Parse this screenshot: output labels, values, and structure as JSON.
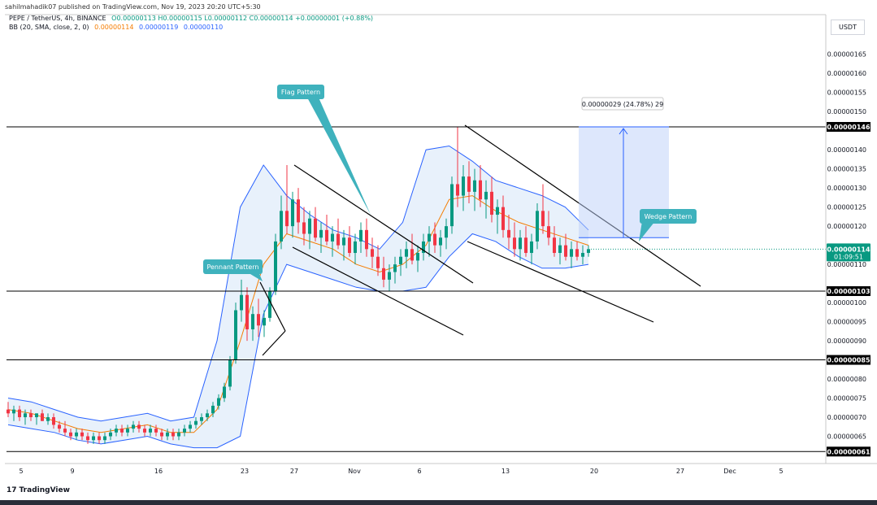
{
  "header": {
    "attribution": "sahilmahadik07 published on TradingView.com, Nov 19, 2023 20:20 UTC+5:30",
    "symbol": "PEPE / TetherUS, 4h, BINANCE",
    "ohlc": "O0.00000113  H0.00000115  L0.00000112  C0.00000114  +0.00000001 (+0.88%)",
    "bb_label": "BB (20, SMA, close, 2, 0)",
    "bb_basis": "0.00000114",
    "bb_upper": "0.00000119",
    "bb_lower": "0.00000110"
  },
  "currency": "USDT",
  "branding": "TradingView",
  "colors": {
    "up": "#089981",
    "down": "#f23645",
    "basis": "#f57c00",
    "band": "#2962ff",
    "band_fill": "#e8f1fb",
    "measure": "#2962ff",
    "callout": "#3fb2bd"
  },
  "price_axis": {
    "ticks": [
      "0.00000165",
      "0.00000160",
      "0.00000155",
      "0.00000150",
      "0.00000140",
      "0.00000135",
      "0.00000130",
      "0.00000125",
      "0.00000120",
      "0.00000110",
      "0.00000100",
      "0.00000095",
      "0.00000090",
      "0.00000080",
      "0.00000075",
      "0.00000070",
      "0.00000065"
    ],
    "labels": {
      "r146": "0.00000146",
      "r103": "0.00000103",
      "r085": "0.00000085",
      "r061": "0.00000061",
      "current_price": "0.00000114",
      "countdown": "01:09:51"
    }
  },
  "time_axis": {
    "ticks": [
      "5",
      "9",
      "16",
      "23",
      "27",
      "Nov",
      "6",
      "13",
      "20",
      "27",
      "Dec",
      "5"
    ]
  },
  "annotations": {
    "flag": "Flag Pattern",
    "pennant": "Pennant Pattern",
    "wedge": "Wedge Pattern",
    "measure": "0.00000029 (24.78%) 29"
  },
  "chart_data": {
    "type": "candlestick",
    "symbol": "PEPE / TetherUS",
    "interval": "4h",
    "exchange": "BINANCE",
    "currency": "USDT",
    "ylim": [
      6.1e-07,
      1.67e-06
    ],
    "x_ticks": [
      "5",
      "9",
      "16",
      "23",
      "27",
      "Nov",
      "6",
      "13",
      "20",
      "27",
      "Dec",
      "5"
    ],
    "horizontal_levels": [
      1.46e-06,
      1.03e-06,
      8.5e-07,
      6.1e-07
    ],
    "last_price": 1.14e-06,
    "series": [
      {
        "name": "BB basis",
        "values": [
          7.2e-07,
          7.1e-07,
          6.9e-07,
          6.7e-07,
          6.6e-07,
          6.7e-07,
          6.8e-07,
          6.6e-07,
          6.6e-07,
          7.2e-07,
          9e-07,
          1.1e-06,
          1.18e-06,
          1.16e-06,
          1.14e-06,
          1.1e-06,
          1.08e-06,
          1.1e-06,
          1.15e-06,
          1.27e-06,
          1.28e-06,
          1.24e-06,
          1.21e-06,
          1.19e-06,
          1.17e-06,
          1.15e-06
        ]
      },
      {
        "name": "BB upper",
        "values": [
          7.5e-07,
          7.4e-07,
          7.2e-07,
          7e-07,
          6.9e-07,
          7e-07,
          7.1e-07,
          6.9e-07,
          7e-07,
          9e-07,
          1.25e-06,
          1.36e-06,
          1.28e-06,
          1.23e-06,
          1.19e-06,
          1.17e-06,
          1.14e-06,
          1.21e-06,
          1.4e-06,
          1.41e-06,
          1.37e-06,
          1.32e-06,
          1.3e-06,
          1.28e-06,
          1.25e-06,
          1.19e-06
        ]
      },
      {
        "name": "BB lower",
        "values": [
          6.8e-07,
          6.7e-07,
          6.6e-07,
          6.4e-07,
          6.3e-07,
          6.4e-07,
          6.5e-07,
          6.3e-07,
          6.2e-07,
          6.2e-07,
          6.5e-07,
          9.7e-07,
          1.1e-06,
          1.08e-06,
          1.06e-06,
          1.04e-06,
          1.03e-06,
          1.03e-06,
          1.04e-06,
          1.12e-06,
          1.18e-06,
          1.16e-06,
          1.12e-06,
          1.09e-06,
          1.09e-06,
          1.1e-06
        ]
      }
    ],
    "measure": {
      "from": 1.17e-06,
      "to": 1.46e-06,
      "change": "0.00000029",
      "percent": "24.78%",
      "bars": 29
    },
    "candles": [
      [
        7.2e-07,
        7.4e-07,
        7e-07,
        7.1e-07
      ],
      [
        7.1e-07,
        7.3e-07,
        6.9e-07,
        7.2e-07
      ],
      [
        7.2e-07,
        7.3e-07,
        6.9e-07,
        7e-07
      ],
      [
        7e-07,
        7.2e-07,
        6.8e-07,
        7.1e-07
      ],
      [
        7.1e-07,
        7.2e-07,
        6.9e-07,
        7e-07
      ],
      [
        7e-07,
        7.1e-07,
        6.8e-07,
        7.1e-07
      ],
      [
        7.1e-07,
        7.2e-07,
        6.9e-07,
        6.9e-07
      ],
      [
        6.9e-07,
        7.1e-07,
        6.8e-07,
        7e-07
      ],
      [
        7e-07,
        7.1e-07,
        6.7e-07,
        6.8e-07
      ],
      [
        6.8e-07,
        6.9e-07,
        6.6e-07,
        6.7e-07
      ],
      [
        6.7e-07,
        6.9e-07,
        6.5e-07,
        6.6e-07
      ],
      [
        6.6e-07,
        6.7e-07,
        6.4e-07,
        6.5e-07
      ],
      [
        6.5e-07,
        6.7e-07,
        6.4e-07,
        6.6e-07
      ],
      [
        6.6e-07,
        6.7e-07,
        6.4e-07,
        6.5e-07
      ],
      [
        6.5e-07,
        6.6e-07,
        6.3e-07,
        6.4e-07
      ],
      [
        6.4e-07,
        6.6e-07,
        6.3e-07,
        6.5e-07
      ],
      [
        6.5e-07,
        6.6e-07,
        6.3e-07,
        6.4e-07
      ],
      [
        6.4e-07,
        6.6e-07,
        6.3e-07,
        6.5e-07
      ],
      [
        6.5e-07,
        6.7e-07,
        6.4e-07,
        6.6e-07
      ],
      [
        6.6e-07,
        6.8e-07,
        6.5e-07,
        6.7e-07
      ],
      [
        6.7e-07,
        6.8e-07,
        6.5e-07,
        6.6e-07
      ],
      [
        6.6e-07,
        6.8e-07,
        6.5e-07,
        6.7e-07
      ],
      [
        6.7e-07,
        6.9e-07,
        6.6e-07,
        6.8e-07
      ],
      [
        6.8e-07,
        6.9e-07,
        6.6e-07,
        6.7e-07
      ],
      [
        6.7e-07,
        6.8e-07,
        6.5e-07,
        6.6e-07
      ],
      [
        6.6e-07,
        6.8e-07,
        6.5e-07,
        6.7e-07
      ],
      [
        6.7e-07,
        6.8e-07,
        6.5e-07,
        6.6e-07
      ],
      [
        6.6e-07,
        6.7e-07,
        6.4e-07,
        6.5e-07
      ],
      [
        6.5e-07,
        6.7e-07,
        6.4e-07,
        6.6e-07
      ],
      [
        6.6e-07,
        6.7e-07,
        6.4e-07,
        6.5e-07
      ],
      [
        6.5e-07,
        6.7e-07,
        6.4e-07,
        6.6e-07
      ],
      [
        6.6e-07,
        6.8e-07,
        6.5e-07,
        6.7e-07
      ],
      [
        6.7e-07,
        6.9e-07,
        6.6e-07,
        6.8e-07
      ],
      [
        6.8e-07,
        7e-07,
        6.7e-07,
        6.9e-07
      ],
      [
        6.9e-07,
        7.1e-07,
        6.8e-07,
        7e-07
      ],
      [
        7e-07,
        7.2e-07,
        6.9e-07,
        7.1e-07
      ],
      [
        7.1e-07,
        7.4e-07,
        7e-07,
        7.3e-07
      ],
      [
        7.3e-07,
        7.6e-07,
        7.2e-07,
        7.5e-07
      ],
      [
        7.5e-07,
        7.9e-07,
        7.4e-07,
        7.8e-07
      ],
      [
        7.8e-07,
        8.6e-07,
        7.7e-07,
        8.5e-07
      ],
      [
        8.5e-07,
        1e-06,
        8.4e-07,
        9.8e-07
      ],
      [
        9.8e-07,
        1.06e-06,
        9.5e-07,
        1.02e-06
      ],
      [
        1.02e-06,
        1.04e-06,
        9e-07,
        9.3e-07
      ],
      [
        9.3e-07,
        9.9e-07,
        9e-07,
        9.7e-07
      ],
      [
        9.7e-07,
        1.01e-06,
        9.1e-07,
        9.4e-07
      ],
      [
        9.4e-07,
        9.8e-07,
        9.1e-07,
        9.6e-07
      ],
      [
        9.6e-07,
        1.04e-06,
        9.5e-07,
        1.03e-06
      ],
      [
        1.03e-06,
        1.18e-06,
        1.02e-06,
        1.16e-06
      ],
      [
        1.16e-06,
        1.28e-06,
        1.14e-06,
        1.24e-06
      ],
      [
        1.24e-06,
        1.36e-06,
        1.18e-06,
        1.2e-06
      ],
      [
        1.2e-06,
        1.29e-06,
        1.17e-06,
        1.27e-06
      ],
      [
        1.27e-06,
        1.3e-06,
        1.18e-06,
        1.21e-06
      ],
      [
        1.21e-06,
        1.25e-06,
        1.15e-06,
        1.18e-06
      ],
      [
        1.18e-06,
        1.24e-06,
        1.14e-06,
        1.22e-06
      ],
      [
        1.22e-06,
        1.25e-06,
        1.16e-06,
        1.17e-06
      ],
      [
        1.17e-06,
        1.21e-06,
        1.13e-06,
        1.19e-06
      ],
      [
        1.19e-06,
        1.23e-06,
        1.15e-06,
        1.16e-06
      ],
      [
        1.16e-06,
        1.2e-06,
        1.12e-06,
        1.18e-06
      ],
      [
        1.18e-06,
        1.22e-06,
        1.14e-06,
        1.15e-06
      ],
      [
        1.15e-06,
        1.19e-06,
        1.11e-06,
        1.17e-06
      ],
      [
        1.17e-06,
        1.2e-06,
        1.12e-06,
        1.13e-06
      ],
      [
        1.13e-06,
        1.18e-06,
        1.1e-06,
        1.16e-06
      ],
      [
        1.16e-06,
        1.21e-06,
        1.13e-06,
        1.19e-06
      ],
      [
        1.19e-06,
        1.22e-06,
        1.12e-06,
        1.14e-06
      ],
      [
        1.14e-06,
        1.17e-06,
        1.09e-06,
        1.12e-06
      ],
      [
        1.12e-06,
        1.15e-06,
        1.07e-06,
        1.09e-06
      ],
      [
        1.09e-06,
        1.12e-06,
        1.04e-06,
        1.06e-06
      ],
      [
        1.06e-06,
        1.1e-06,
        1.03e-06,
        1.08e-06
      ],
      [
        1.08e-06,
        1.12e-06,
        1.05e-06,
        1.1e-06
      ],
      [
        1.1e-06,
        1.14e-06,
        1.07e-06,
        1.12e-06
      ],
      [
        1.12e-06,
        1.16e-06,
        1.09e-06,
        1.14e-06
      ],
      [
        1.14e-06,
        1.18e-06,
        1.1e-06,
        1.11e-06
      ],
      [
        1.11e-06,
        1.15e-06,
        1.08e-06,
        1.13e-06
      ],
      [
        1.13e-06,
        1.18e-06,
        1.11e-06,
        1.16e-06
      ],
      [
        1.16e-06,
        1.2e-06,
        1.12e-06,
        1.18e-06
      ],
      [
        1.18e-06,
        1.21e-06,
        1.13e-06,
        1.15e-06
      ],
      [
        1.15e-06,
        1.19e-06,
        1.12e-06,
        1.17e-06
      ],
      [
        1.17e-06,
        1.22e-06,
        1.14e-06,
        1.2e-06
      ],
      [
        1.2e-06,
        1.33e-06,
        1.18e-06,
        1.31e-06
      ],
      [
        1.31e-06,
        1.46e-06,
        1.25e-06,
        1.28e-06
      ],
      [
        1.28e-06,
        1.36e-06,
        1.24e-06,
        1.33e-06
      ],
      [
        1.33e-06,
        1.37e-06,
        1.26e-06,
        1.29e-06
      ],
      [
        1.29e-06,
        1.35e-06,
        1.24e-06,
        1.32e-06
      ],
      [
        1.32e-06,
        1.36e-06,
        1.25e-06,
        1.27e-06
      ],
      [
        1.27e-06,
        1.32e-06,
        1.22e-06,
        1.29e-06
      ],
      [
        1.29e-06,
        1.33e-06,
        1.21e-06,
        1.23e-06
      ],
      [
        1.23e-06,
        1.27e-06,
        1.18e-06,
        1.25e-06
      ],
      [
        1.25e-06,
        1.28e-06,
        1.17e-06,
        1.19e-06
      ],
      [
        1.19e-06,
        1.23e-06,
        1.14e-06,
        1.17e-06
      ],
      [
        1.17e-06,
        1.21e-06,
        1.12e-06,
        1.14e-06
      ],
      [
        1.14e-06,
        1.19e-06,
        1.11e-06,
        1.17e-06
      ],
      [
        1.17e-06,
        1.2e-06,
        1.12e-06,
        1.13e-06
      ],
      [
        1.13e-06,
        1.18e-06,
        1.1e-06,
        1.16e-06
      ],
      [
        1.16e-06,
        1.26e-06,
        1.14e-06,
        1.24e-06
      ],
      [
        1.24e-06,
        1.31e-06,
        1.18e-06,
        1.2e-06
      ],
      [
        1.2e-06,
        1.24e-06,
        1.15e-06,
        1.17e-06
      ],
      [
        1.17e-06,
        1.2e-06,
        1.12e-06,
        1.13e-06
      ],
      [
        1.13e-06,
        1.17e-06,
        1.1e-06,
        1.15e-06
      ],
      [
        1.15e-06,
        1.18e-06,
        1.11e-06,
        1.12e-06
      ],
      [
        1.12e-06,
        1.16e-06,
        1.09e-06,
        1.14e-06
      ],
      [
        1.14e-06,
        1.16e-06,
        1.11e-06,
        1.12e-06
      ],
      [
        1.12e-06,
        1.15e-06,
        1.1e-06,
        1.13e-06
      ],
      [
        1.13e-06,
        1.15e-06,
        1.12e-06,
        1.14e-06
      ]
    ]
  }
}
